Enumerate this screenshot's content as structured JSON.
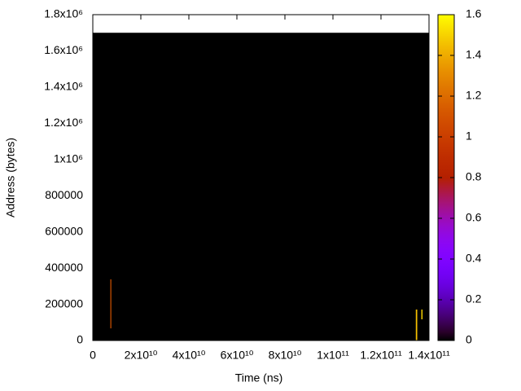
{
  "chart_data": {
    "type": "heatmap",
    "x_label": "Time (ns)",
    "y_label": "Address (bytes)",
    "xlim": [
      0,
      140000000000
    ],
    "ylim": [
      0,
      1800000
    ],
    "zlim": [
      0,
      1.6
    ],
    "xticks": [
      0,
      {
        "value": 20000000000,
        "label": "2x10¹⁰"
      },
      {
        "value": 40000000000,
        "label": "4x10¹⁰"
      },
      {
        "value": 60000000000,
        "label": "6x10¹⁰"
      },
      {
        "value": 80000000000,
        "label": "8x10¹⁰"
      },
      {
        "value": 100000000000,
        "label": "1x10¹¹"
      },
      {
        "value": 120000000000,
        "label": "1.2x10¹¹"
      },
      {
        "value": 140000000000,
        "label": "1.4x10¹¹"
      }
    ],
    "yticks": [
      0,
      200000,
      400000,
      600000,
      800000,
      {
        "value": 1000000,
        "label": "1x10⁶"
      },
      {
        "value": 1200000,
        "label": "1.2x10⁶"
      },
      {
        "value": 1400000,
        "label": "1.4x10⁶"
      },
      {
        "value": 1600000,
        "label": "1.6x10⁶"
      },
      {
        "value": 1800000,
        "label": "1.8x10⁶"
      }
    ],
    "zticks": [
      0,
      0.2,
      0.4,
      0.6,
      0.8,
      1,
      1.2,
      1.4,
      1.6
    ],
    "cells": [
      {
        "x0": 0,
        "x1": 140000000000,
        "y0": 0,
        "y1": 1700000,
        "value": 0
      },
      {
        "x0": 7300000000,
        "x1": 7700000000,
        "y0": 67000,
        "y1": 338000,
        "value": 1.1
      },
      {
        "x0": 134500000000,
        "x1": 135100000000,
        "y0": 0,
        "y1": 171000,
        "value": 1.45
      },
      {
        "x0": 136800000000,
        "x1": 137300000000,
        "y0": 117000,
        "y1": 171000,
        "value": 1.5
      }
    ]
  }
}
